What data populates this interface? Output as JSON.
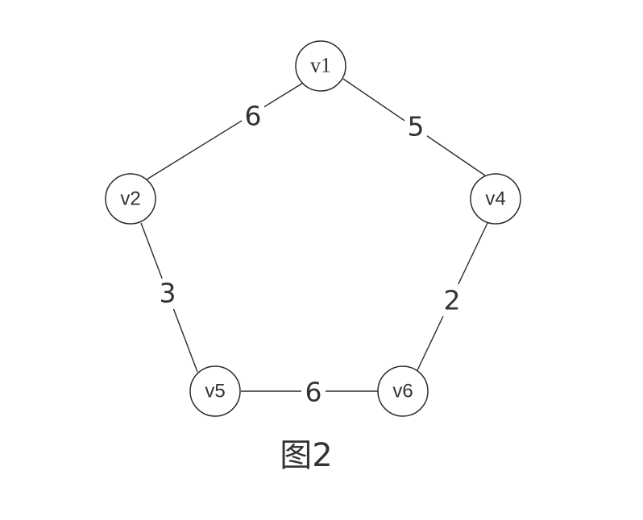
{
  "graph": {
    "nodes": [
      {
        "id": "v1",
        "label": "v1"
      },
      {
        "id": "v2",
        "label": "v2"
      },
      {
        "id": "v4",
        "label": "v4"
      },
      {
        "id": "v5",
        "label": "v5"
      },
      {
        "id": "v6",
        "label": "v6"
      }
    ],
    "edges": [
      {
        "from": "v1",
        "to": "v2",
        "weight": "6"
      },
      {
        "from": "v1",
        "to": "v4",
        "weight": "5"
      },
      {
        "from": "v2",
        "to": "v5",
        "weight": "3"
      },
      {
        "from": "v4",
        "to": "v6",
        "weight": "2"
      },
      {
        "from": "v5",
        "to": "v6",
        "weight": "6"
      }
    ]
  },
  "caption": "图2",
  "colors": {
    "stroke": "#2b2b2b",
    "text": "#333333",
    "background": "#ffffff"
  }
}
